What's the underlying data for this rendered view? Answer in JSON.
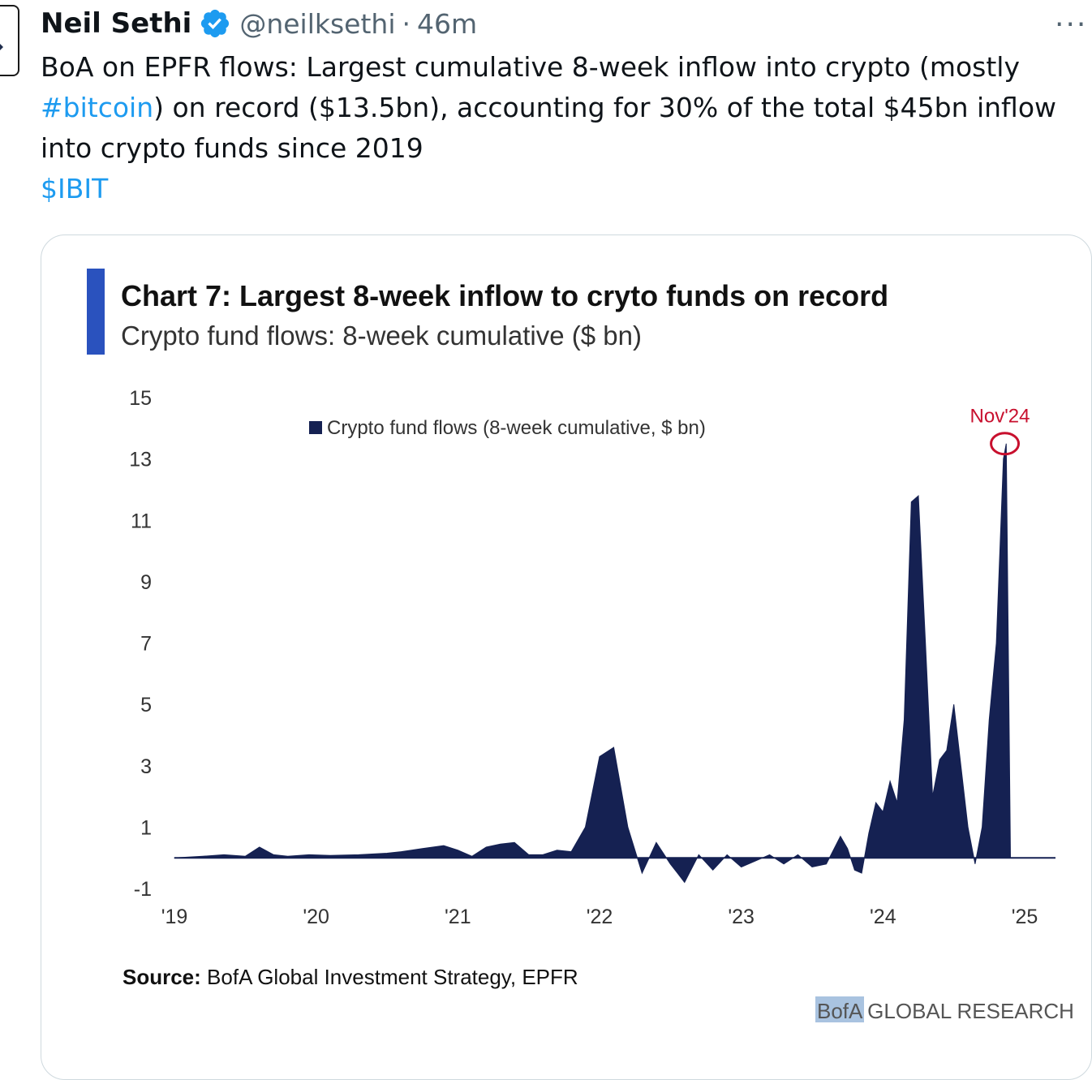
{
  "tweet": {
    "author_name": "Neil Sethi",
    "handle": "@neilksethi",
    "separator": "·",
    "time_ago": "46m",
    "more_label": "···",
    "text_line1": "BoA on EPFR flows: Largest cumulative 8-week inflow into crypto (mostly",
    "hashtag": "#bitcoin",
    "text_line2_rest": ") on record ($13.5bn), accounting for 30% of the total $45bn inflow",
    "text_line3": "into crypto funds since 2019",
    "cashtag": "$IBIT"
  },
  "colors": {
    "link": "#1d9bf0",
    "verified": "#1d9bf0",
    "bar": "#152152",
    "accent_bar": "#2a52be",
    "annotation": "#c8102e"
  },
  "icons": [
    "avatar",
    "verified-badge-icon",
    "more-icon"
  ],
  "chart_data": {
    "type": "area",
    "title": "Chart 7: Largest 8-week inflow to cryto funds on record",
    "subtitle": "Crypto fund flows: 8-week cumulative ($ bn)",
    "legend": "Crypto fund flows (8-week cumulative, $ bn)",
    "legend_position": "top-center",
    "y_ticks": [
      "15",
      "13",
      "11",
      "9",
      "7",
      "5",
      "3",
      "1",
      "-1"
    ],
    "x_ticks": [
      "'19",
      "'20",
      "'21",
      "'22",
      "'23",
      "'24",
      "'25"
    ],
    "ylim": [
      -1,
      15
    ],
    "xlim": [
      2019.0,
      2025.0
    ],
    "grid": false,
    "annotation": {
      "label": "Nov'24",
      "x": 2024.86,
      "y": 13.5
    },
    "source_label": "Source:",
    "source_text": "BofA Global Investment Strategy, EPFR",
    "brand_highlight": "BofA",
    "brand_rest": "GLOBAL RESEARCH",
    "series": [
      {
        "name": "Crypto fund flows (8-week cumulative, $ bn)",
        "x": [
          2019.0,
          2019.2,
          2019.35,
          2019.5,
          2019.6,
          2019.7,
          2019.8,
          2019.95,
          2020.1,
          2020.3,
          2020.5,
          2020.6,
          2020.75,
          2020.9,
          2021.0,
          2021.1,
          2021.2,
          2021.3,
          2021.4,
          2021.5,
          2021.6,
          2021.7,
          2021.8,
          2021.9,
          2022.0,
          2022.1,
          2022.2,
          2022.3,
          2022.4,
          2022.5,
          2022.55,
          2022.6,
          2022.7,
          2022.8,
          2022.9,
          2023.0,
          2023.1,
          2023.2,
          2023.3,
          2023.4,
          2023.5,
          2023.6,
          2023.7,
          2023.75,
          2023.8,
          2023.85,
          2023.9,
          2023.95,
          2024.0,
          2024.05,
          2024.1,
          2024.15,
          2024.2,
          2024.25,
          2024.3,
          2024.35,
          2024.4,
          2024.45,
          2024.5,
          2024.55,
          2024.6,
          2024.65,
          2024.7,
          2024.75,
          2024.8,
          2024.85,
          2024.87,
          2024.9
        ],
        "values": [
          0,
          0.05,
          0.1,
          0.05,
          0.35,
          0.1,
          0.05,
          0.1,
          0.08,
          0.1,
          0.15,
          0.2,
          0.3,
          0.4,
          0.25,
          0.05,
          0.35,
          0.45,
          0.5,
          0.1,
          0.1,
          0.25,
          0.2,
          1.0,
          3.3,
          3.6,
          1.0,
          -0.5,
          0.5,
          -0.2,
          -0.5,
          -0.8,
          0.1,
          -0.4,
          0.1,
          -0.3,
          -0.1,
          0.1,
          -0.2,
          0.1,
          -0.3,
          -0.2,
          0.7,
          0.3,
          -0.4,
          -0.5,
          0.8,
          1.8,
          1.5,
          2.5,
          1.8,
          4.5,
          11.6,
          11.8,
          7.0,
          2.0,
          3.2,
          3.5,
          5.0,
          3.0,
          1.0,
          -0.2,
          1.0,
          4.5,
          7.0,
          13.0,
          13.5,
          0
        ]
      }
    ]
  }
}
